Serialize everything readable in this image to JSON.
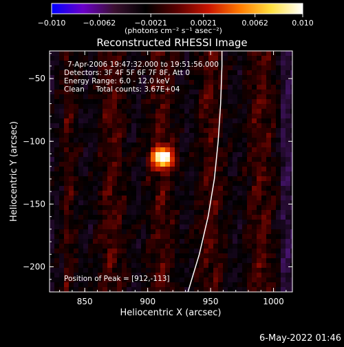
{
  "chart_data": {
    "type": "heatmap",
    "title": "Reconstructed RHESSI Image",
    "xlabel": "Heliocentric X (arcsec)",
    "ylabel": "Heliocentric Y (arcsec)",
    "xlim": [
      822,
      1015
    ],
    "ylim": [
      -220,
      -28
    ],
    "x_ticks": [
      {
        "value": 850,
        "label": "850"
      },
      {
        "value": 900,
        "label": "900"
      },
      {
        "value": 950,
        "label": "950"
      },
      {
        "value": 1000,
        "label": "1000"
      }
    ],
    "y_ticks": [
      {
        "value": -50,
        "label": "−50"
      },
      {
        "value": -100,
        "label": "−100"
      },
      {
        "value": -150,
        "label": "−150"
      },
      {
        "value": -200,
        "label": "−200"
      }
    ],
    "colorbar": {
      "range": [
        -0.01,
        0.01
      ],
      "ticks": [
        {
          "value": -0.01,
          "label": "−0.010"
        },
        {
          "value": -0.0062,
          "label": "−0.0062"
        },
        {
          "value": -0.0021,
          "label": "−0.0021"
        },
        {
          "value": 0.0021,
          "label": "0.0021"
        },
        {
          "value": 0.0062,
          "label": "0.0062"
        },
        {
          "value": 0.01,
          "label": "0.010"
        }
      ],
      "unit_label": "(photons cm⁻² s⁻¹ asec⁻²)",
      "colors": [
        "#0000ff",
        "#6a00c8",
        "#3a1030",
        "#000000",
        "#5a0000",
        "#c81400",
        "#ff7a00",
        "#ffe040",
        "#ffffff"
      ]
    },
    "annotations": [
      "7-Apr-2006 19:47:32.000 to 19:51:56.000",
      "Detectors: 3F 4F 5F 6F 7F 8F, Att 0",
      "Energy Range: 6.0 - 12.0 keV",
      "Clean     Total counts: 3.67E+04"
    ],
    "peak_label": "Position of Peak = [912,-113]",
    "peak": {
      "x": 912,
      "y": -113,
      "value": 0.01
    },
    "limb_curve": [
      [
        932,
        -220
      ],
      [
        941,
        -190
      ],
      [
        948,
        -160
      ],
      [
        953,
        -130
      ],
      [
        956,
        -100
      ],
      [
        958,
        -70
      ],
      [
        959,
        -40
      ],
      [
        959,
        -28
      ]
    ],
    "colors": {
      "limb": "#ffffff",
      "axes": "#ffffff",
      "background": "#000000"
    }
  },
  "footer": {
    "timestamp": "6-May-2022 01:46"
  }
}
